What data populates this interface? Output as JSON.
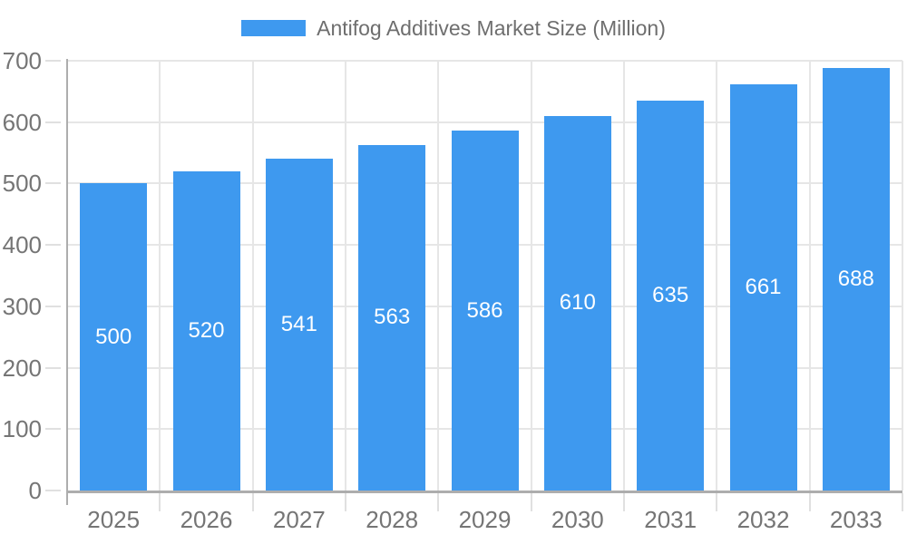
{
  "legend": {
    "label": "Antifog Additives Market Size (Million)"
  },
  "chart_data": {
    "type": "bar",
    "title": "Antifog Additives Market Size (Million)",
    "categories": [
      "2025",
      "2026",
      "2027",
      "2028",
      "2029",
      "2030",
      "2031",
      "2032",
      "2033"
    ],
    "values": [
      500,
      520,
      541,
      563,
      586,
      610,
      635,
      661,
      688
    ],
    "xlabel": "",
    "ylabel": "",
    "ylim": [
      0,
      700
    ],
    "ytick_step": 100,
    "grid": true,
    "legend_position": "top-center",
    "value_labels": "inside-center",
    "colors": {
      "bar": "#3E99EF",
      "value_label": "#FFFFFF",
      "axis_label": "#757575",
      "legend_text": "#6E6E6E",
      "gridline": "#E6E6E6",
      "tick": "#E0E0E0",
      "axis_line": "#ADADAD",
      "background": "#FFFFFF"
    }
  }
}
